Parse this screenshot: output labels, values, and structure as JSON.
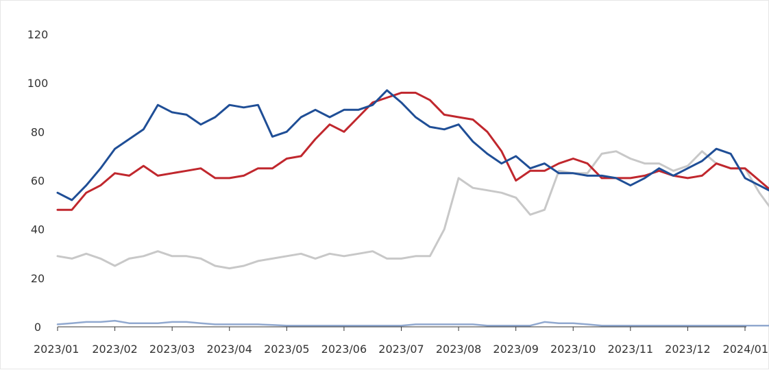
{
  "chart_data": {
    "type": "line",
    "ylim": [
      0,
      120
    ],
    "yticks": [
      "0",
      "20",
      "40",
      "60",
      "80",
      "100",
      "120"
    ],
    "xticks": [
      "2023/01",
      "2023/02",
      "2023/03",
      "2023/04",
      "2023/05",
      "2023/06",
      "2023/07",
      "2023/08",
      "2023/09",
      "2023/10",
      "2023/11",
      "2023/12",
      "2024/01"
    ],
    "grid": false,
    "legend": "none",
    "x_points_per_month": 4,
    "series": [
      {
        "color": "#1f4e96",
        "values": [
          55,
          52,
          58,
          65,
          73,
          77,
          81,
          91,
          88,
          87,
          83,
          86,
          91,
          90,
          91,
          78,
          80,
          86,
          89,
          86,
          89,
          89,
          91,
          97,
          92,
          86,
          82,
          81,
          83,
          76,
          71,
          67,
          70,
          65,
          67,
          63,
          63,
          62,
          62,
          61,
          58,
          61,
          65,
          62,
          65,
          68,
          73,
          71,
          61,
          58,
          55,
          58,
          62
        ]
      },
      {
        "color": "#c0272d",
        "values": [
          48,
          48,
          55,
          58,
          63,
          62,
          66,
          62,
          63,
          64,
          65,
          61,
          61,
          62,
          65,
          65,
          69,
          70,
          77,
          83,
          80,
          86,
          92,
          94,
          96,
          96,
          93,
          87,
          86,
          85,
          80,
          72,
          60,
          64,
          64,
          67,
          69,
          67,
          61,
          61,
          61,
          62,
          64,
          62,
          61,
          62,
          67,
          65,
          65,
          60,
          55,
          47,
          51
        ]
      },
      {
        "color": "#c8c8c8",
        "values": [
          29,
          28,
          30,
          28,
          25,
          28,
          29,
          31,
          29,
          29,
          28,
          25,
          24,
          25,
          27,
          28,
          29,
          30,
          28,
          30,
          29,
          30,
          31,
          28,
          28,
          29,
          29,
          40,
          61,
          57,
          56,
          55,
          53,
          46,
          48,
          64,
          63,
          63,
          71,
          72,
          69,
          67,
          67,
          64,
          66,
          72,
          67,
          65,
          65,
          55,
          47,
          48,
          45
        ]
      },
      {
        "color": "#90a8cf",
        "values": [
          1,
          1.5,
          2,
          2,
          2.5,
          1.5,
          1.5,
          1.5,
          2,
          2,
          1.5,
          1,
          1,
          1,
          1,
          0.8,
          0.5,
          0.5,
          0.5,
          0.5,
          0.5,
          0.5,
          0.5,
          0.5,
          0.5,
          1,
          1,
          1,
          1,
          1,
          0.5,
          0.5,
          0.5,
          0.5,
          2,
          1.5,
          1.5,
          1,
          0.5,
          0.5,
          0.5,
          0.5,
          0.5,
          0.5,
          0.5,
          0.5,
          0.5,
          0.5,
          0.5,
          0.5,
          0.5,
          0.5,
          0.5
        ]
      }
    ]
  }
}
